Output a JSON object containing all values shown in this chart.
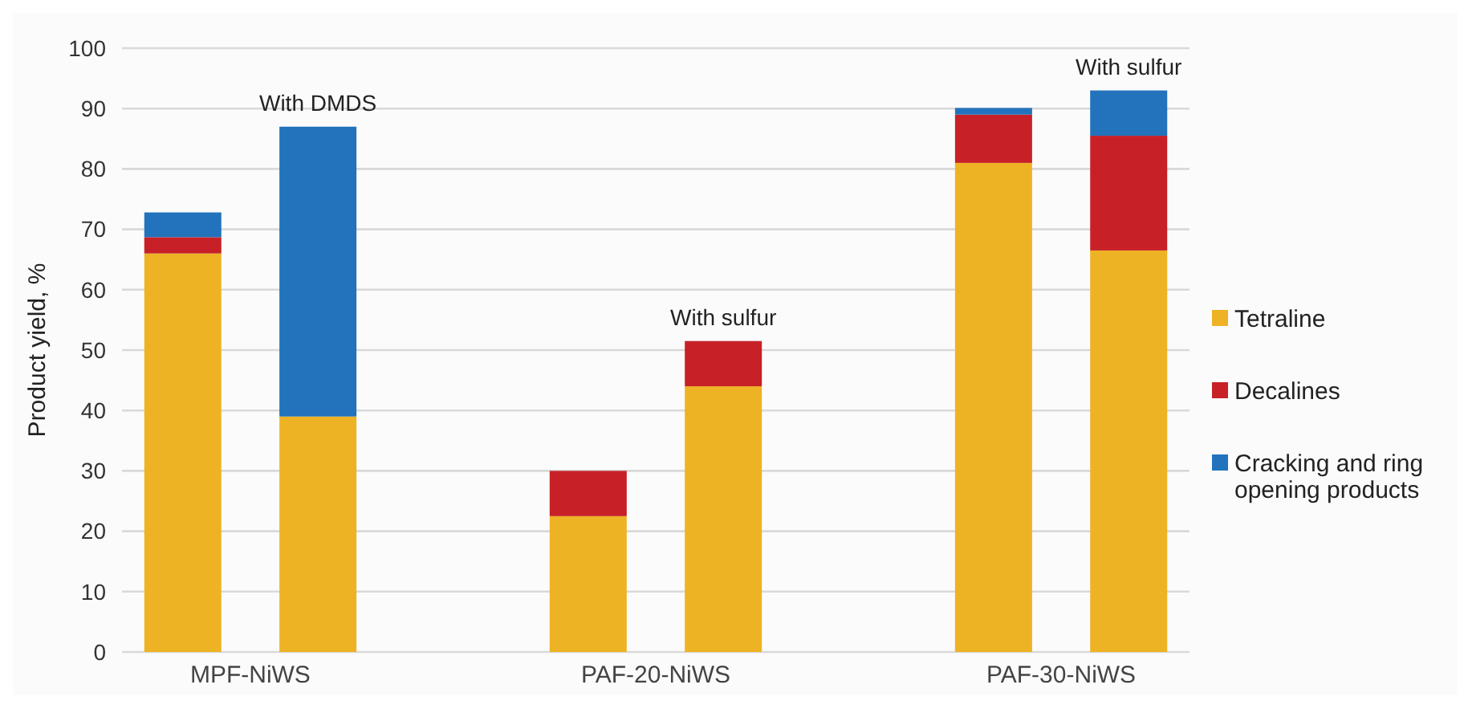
{
  "chart_data": {
    "type": "bar",
    "stacked": true,
    "ylabel": "Product yield, %",
    "categories": [
      null,
      "MPF-NiWS",
      null,
      null,
      null,
      null,
      null,
      "PAF-20-NiWS",
      null,
      null,
      null,
      null,
      null,
      "PAF-30-NiWS",
      null
    ],
    "ylim": [
      0,
      100
    ],
    "yticks": [
      0,
      10,
      20,
      30,
      40,
      50,
      60,
      70,
      80,
      90,
      100
    ],
    "grid": "y",
    "legend": "right",
    "series": [
      {
        "name": "Tetraline",
        "color": "#eeb324",
        "values": [
          66,
          null,
          39,
          null,
          null,
          null,
          22.5,
          null,
          44,
          null,
          null,
          null,
          81,
          null,
          66.5
        ]
      },
      {
        "name": "Decalines",
        "color": "#c72127",
        "values": [
          2.7,
          null,
          0,
          null,
          null,
          null,
          7.5,
          null,
          7.5,
          null,
          null,
          null,
          8,
          null,
          19
        ]
      },
      {
        "name": "Cracking and ring opening products",
        "color": "#2273bb",
        "values": [
          4.1,
          null,
          48,
          null,
          null,
          null,
          0,
          null,
          0,
          null,
          null,
          null,
          1.1,
          null,
          7.5
        ]
      }
    ],
    "annotations": [
      {
        "text": "With DMDS",
        "y": 87
      },
      {
        "text": "With sulfur",
        "y": 51.5
      },
      {
        "text": "With sulfur",
        "y": 93
      }
    ]
  }
}
